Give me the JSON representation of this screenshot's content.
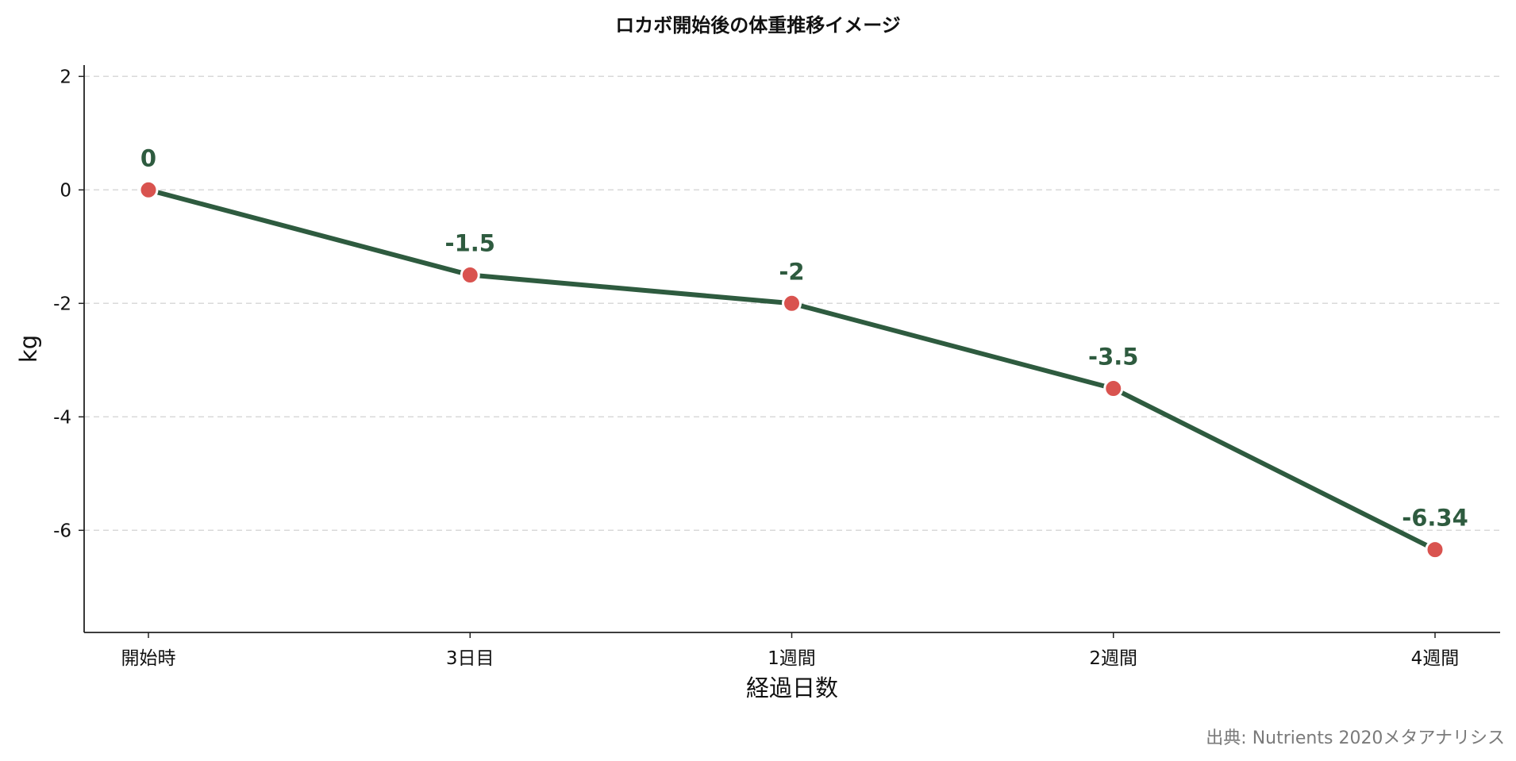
{
  "chart_data": {
    "type": "line",
    "title": "ロカボ開始後の体重推移イメージ",
    "xlabel": "経過日数",
    "ylabel": "kg",
    "categories": [
      "開始時",
      "3日目",
      "1週間",
      "2週間",
      "4週間"
    ],
    "series": [
      {
        "values": [
          0,
          -1.5,
          -2,
          -3.5,
          -6.34
        ]
      }
    ],
    "data_labels": [
      "0",
      "-1.5",
      "-2",
      "-3.5",
      "-6.34"
    ],
    "ylim": [
      -7.8,
      2.2
    ],
    "yticks": [
      2,
      0,
      -2,
      -4,
      -6
    ],
    "ytick_labels": [
      "2",
      "0",
      "-2",
      "-4",
      "-6"
    ],
    "grid": "horizontal dashed",
    "colors": {
      "line": "#2e5b3f",
      "marker": "#d9534f",
      "label": "#2e5b3f"
    }
  },
  "source": "出典: Nutrients 2020メタアナリシス"
}
